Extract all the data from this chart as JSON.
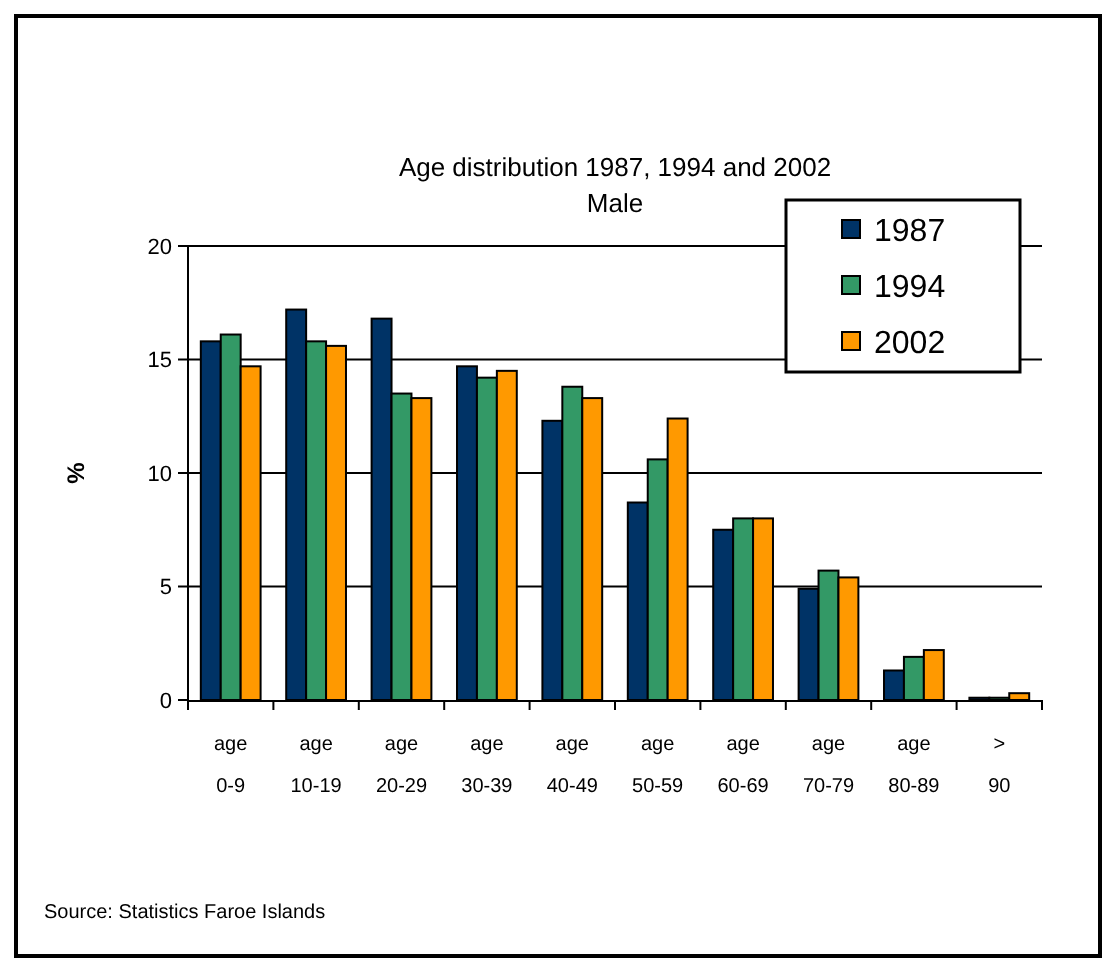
{
  "chart_data": {
    "type": "bar",
    "title": "Age distribution 1987, 1994 and 2002",
    "subtitle": "Male",
    "ylabel": "%",
    "categories": [
      "age 0-9",
      "age 10-19",
      "age 20-29",
      "age 30-39",
      "age 40-49",
      "age 50-59",
      "age 60-69",
      "age 70-79",
      "age 80-89",
      "> 90"
    ],
    "series": [
      {
        "name": "1987",
        "color": "#003366",
        "values": [
          15.8,
          17.2,
          16.8,
          14.7,
          12.3,
          8.7,
          7.5,
          4.9,
          1.3,
          0.1
        ]
      },
      {
        "name": "1994",
        "color": "#339966",
        "values": [
          16.1,
          15.8,
          13.5,
          14.2,
          13.8,
          10.6,
          8.0,
          5.7,
          1.9,
          0.1
        ]
      },
      {
        "name": "2002",
        "color": "#ff9900",
        "values": [
          14.7,
          15.6,
          13.3,
          14.5,
          13.3,
          12.4,
          8.0,
          5.4,
          2.2,
          0.3
        ]
      }
    ],
    "ylim": [
      0,
      20
    ],
    "yticks": [
      0,
      5,
      10,
      15,
      20
    ],
    "grid": "y",
    "legend": "top right",
    "annotations": [
      "Source: Statistics Faroe Islands"
    ]
  }
}
